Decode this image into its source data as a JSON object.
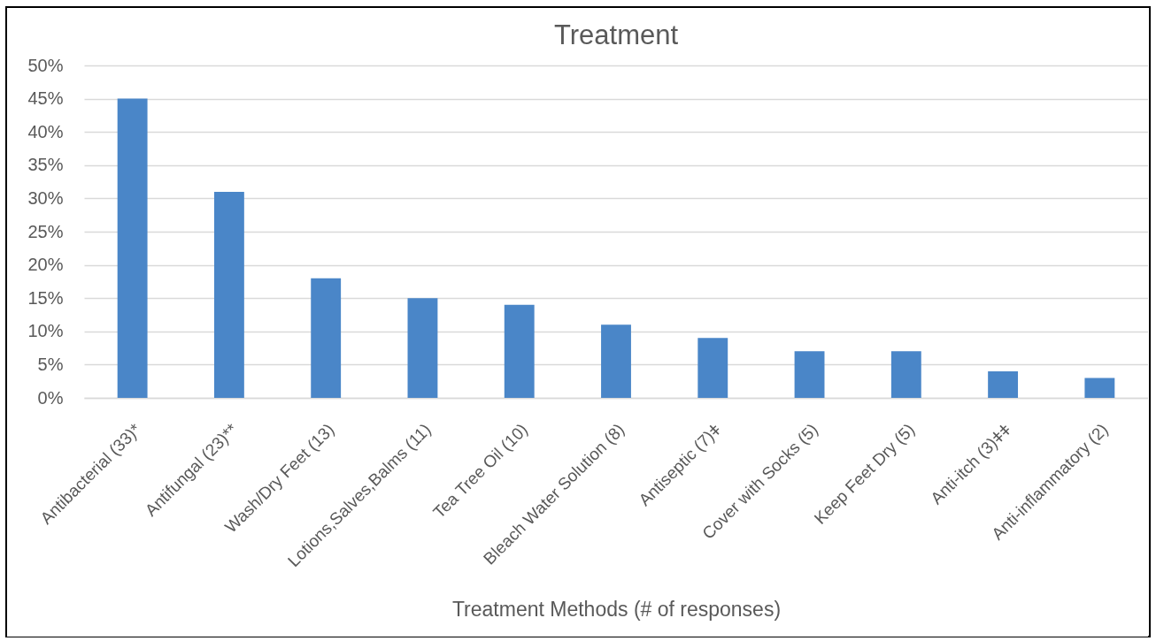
{
  "chart_data": {
    "type": "bar",
    "title": "Treatment",
    "xlabel": "Treatment Methods (# of responses)",
    "categories": [
      "Antibacterial (33)*",
      "Antifungal (23)**",
      "Wash/Dry Feet (13)",
      "Lotions,Salves,Balms (11)",
      "Tea Tree Oil (10)",
      "Bleach Water Solution (8)",
      "Antiseptic (7)ǂ",
      "Cover with Socks (5)",
      "Keep Feet Dry (5)",
      "Anti-itch (3)ǂǂ",
      "Anti-inflammatory (2)"
    ],
    "values": [
      45,
      31,
      18,
      15,
      14,
      11,
      9,
      7,
      7,
      4,
      3
    ],
    "color": "#4a86c8",
    "ylim": [
      0,
      50
    ],
    "yticks": [
      {
        "value": 0,
        "label": "0%"
      },
      {
        "value": 5,
        "label": "5%"
      },
      {
        "value": 10,
        "label": "10%"
      },
      {
        "value": 15,
        "label": "15%"
      },
      {
        "value": 20,
        "label": "20%"
      },
      {
        "value": 25,
        "label": "25%"
      },
      {
        "value": 30,
        "label": "30%"
      },
      {
        "value": 35,
        "label": "35%"
      },
      {
        "value": 40,
        "label": "40%"
      },
      {
        "value": 45,
        "label": "45%"
      },
      {
        "value": 50,
        "label": "50%"
      }
    ],
    "grid": "y"
  }
}
